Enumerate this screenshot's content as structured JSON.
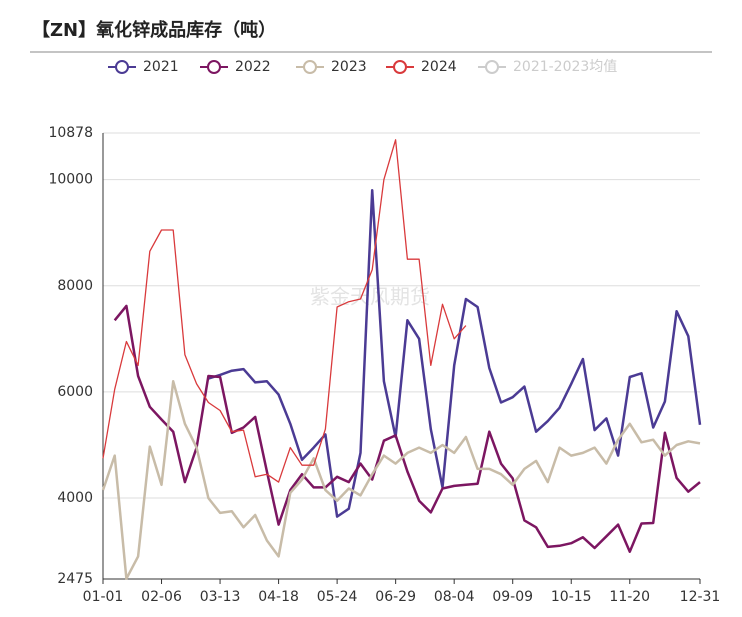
{
  "chart_data": {
    "type": "line",
    "title": "【ZN】氧化锌成品库存（吨）",
    "watermark": "紫金天风期货",
    "categories": [
      "01-01",
      null,
      null,
      null,
      null,
      "02-06",
      null,
      null,
      null,
      null,
      "03-13",
      null,
      null,
      null,
      null,
      "04-18",
      null,
      null,
      null,
      null,
      "05-24",
      null,
      null,
      null,
      null,
      "06-29",
      null,
      null,
      null,
      null,
      "08-04",
      null,
      null,
      null,
      null,
      "09-09",
      null,
      null,
      null,
      null,
      "10-15",
      null,
      null,
      null,
      null,
      "11-20",
      null,
      null,
      null,
      null,
      null,
      "12-31"
    ],
    "ylim": [
      2475,
      10878
    ],
    "yticks": [
      2475,
      4000,
      6000,
      8000,
      10000,
      10878
    ],
    "grid": true,
    "legend": "top",
    "series": [
      {
        "name": "2021",
        "color": "#4b3b94",
        "width": 2.5,
        "values": [
          null,
          null,
          null,
          null,
          null,
          null,
          null,
          null,
          null,
          6250,
          6320,
          6400,
          6430,
          6180,
          6200,
          5950,
          5400,
          4720,
          4950,
          5200,
          3650,
          3800,
          4850,
          9800,
          6200,
          5150,
          7350,
          7000,
          5300,
          4200,
          6500,
          7750,
          7600,
          6450,
          5800,
          5900,
          6100,
          5250,
          5450,
          5700,
          6150,
          6620,
          5280,
          5500,
          4800,
          6280,
          6350,
          5330,
          5820,
          7520,
          7050,
          5380
        ]
      },
      {
        "name": "2022",
        "color": "#7c1661",
        "width": 2.5,
        "values": [
          null,
          7350,
          7620,
          6300,
          5720,
          5480,
          5250,
          4300,
          4950,
          6300,
          6280,
          5230,
          5330,
          5530,
          4500,
          3500,
          4150,
          4450,
          4200,
          4200,
          4400,
          4300,
          4650,
          4350,
          5080,
          5180,
          4500,
          3950,
          3730,
          4180,
          4230,
          4250,
          4270,
          5250,
          4650,
          4370,
          3580,
          3450,
          3080,
          3100,
          3150,
          3260,
          3060,
          3280,
          3500,
          2990,
          3520,
          3530,
          5230,
          4380,
          4120,
          4300
        ]
      },
      {
        "name": "2023",
        "color": "#c8bca8",
        "width": 2.5,
        "values": [
          4150,
          4800,
          2480,
          2900,
          4970,
          4250,
          6200,
          5400,
          4950,
          4000,
          3720,
          3750,
          3450,
          3680,
          3200,
          2900,
          4100,
          4350,
          4750,
          4150,
          3950,
          4180,
          4050,
          4450,
          4800,
          4650,
          4850,
          4950,
          4850,
          5000,
          4850,
          5150,
          4550,
          4550,
          4450,
          4250,
          4550,
          4700,
          4300,
          4950,
          4800,
          4850,
          4950,
          4650,
          5100,
          5400,
          5050,
          5100,
          4800,
          5000,
          5070,
          5030
        ]
      },
      {
        "name": "2024",
        "color": "#d93a3c",
        "width": 1.3,
        "values": [
          4750,
          6050,
          6950,
          6500,
          8650,
          9050,
          9050,
          6700,
          6150,
          5800,
          5650,
          5250,
          5280,
          4400,
          4450,
          4300,
          4950,
          4620,
          4620,
          5300,
          7600,
          7700,
          7750,
          8300,
          10000,
          10750,
          8500,
          8500,
          6500,
          7650,
          7000,
          7250,
          null,
          null,
          null,
          null,
          null,
          null,
          null,
          null,
          null,
          null,
          null,
          null,
          null,
          null,
          null,
          null,
          null,
          null,
          null,
          null
        ]
      },
      {
        "name": "2021-2023均值",
        "color": "#cccccc",
        "visible": false,
        "values": [
          null,
          null,
          null,
          null,
          null,
          null,
          null,
          null,
          null,
          null,
          null,
          null,
          null,
          null,
          null,
          null,
          null,
          null,
          null,
          null,
          null,
          null,
          null,
          null,
          null,
          null,
          null,
          null,
          null,
          null,
          null,
          null,
          null,
          null,
          null,
          null,
          null,
          null,
          null,
          null,
          null,
          null,
          null,
          null,
          null,
          null,
          null,
          null,
          null,
          null,
          null,
          null
        ]
      }
    ]
  }
}
